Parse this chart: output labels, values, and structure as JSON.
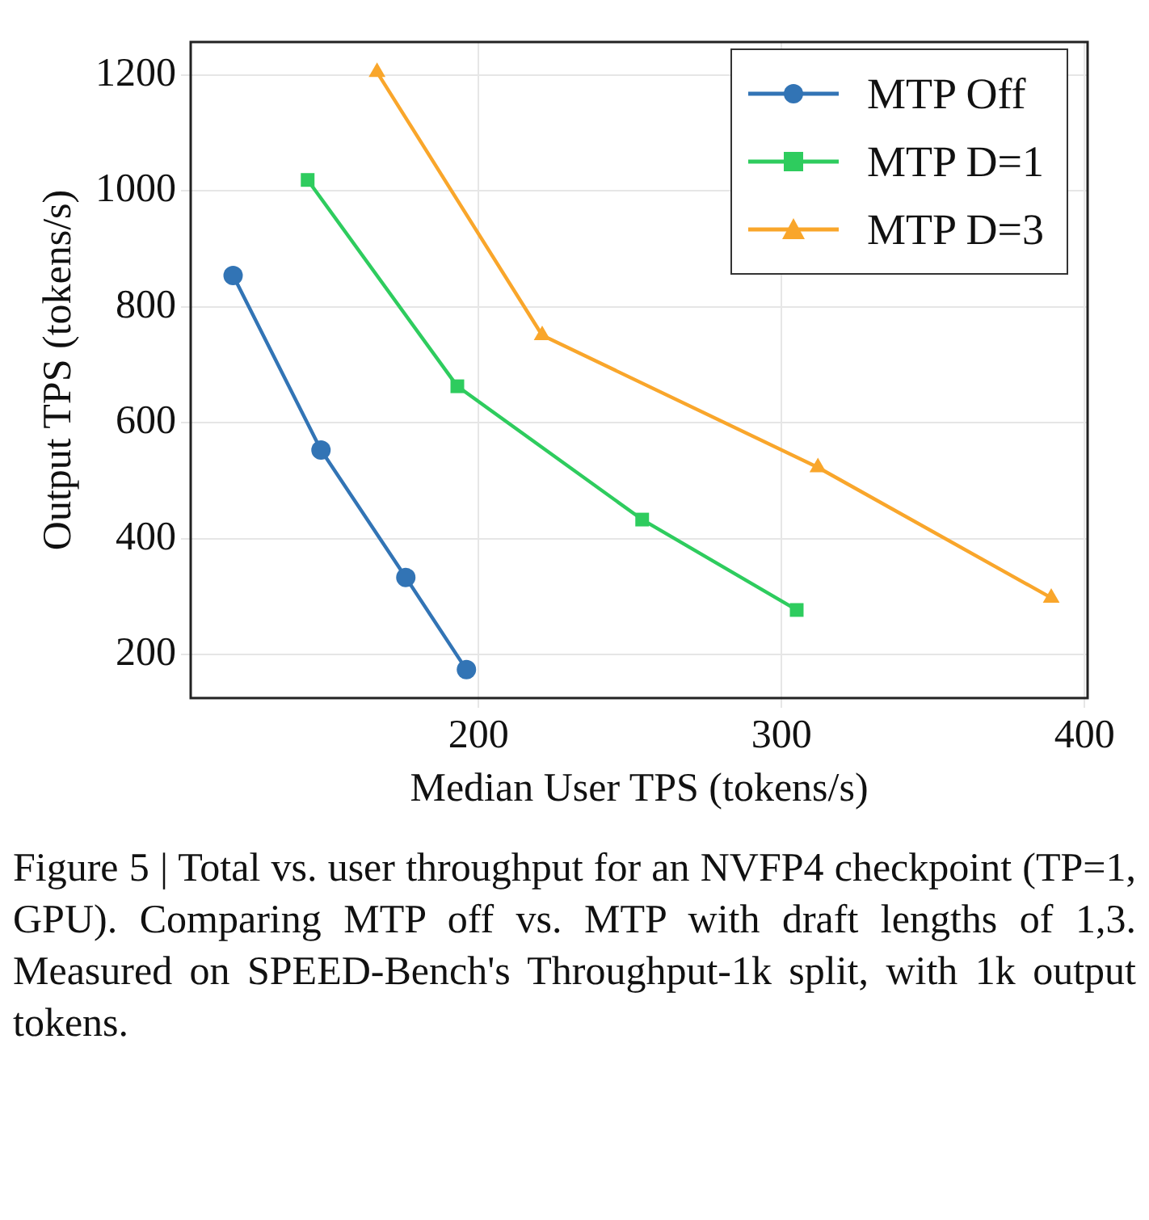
{
  "chart_data": {
    "type": "line",
    "xlabel": "Median User TPS (tokens/s)",
    "ylabel": "Output TPS (tokens/s)",
    "series": [
      {
        "name": "MTP Off",
        "color": "#3274b5",
        "marker": "circle",
        "x": [
          119,
          148,
          176,
          196
        ],
        "values": [
          854,
          553,
          333,
          174
        ]
      },
      {
        "name": "MTP D=1",
        "color": "#2ecc5e",
        "marker": "square",
        "x": [
          143.6,
          193,
          254,
          305
        ],
        "values": [
          1019,
          663,
          433,
          277
        ]
      },
      {
        "name": "MTP D=3",
        "color": "#f9a62b",
        "marker": "triangle",
        "x": [
          166.5,
          221,
          312,
          389
        ],
        "values": [
          1205,
          751,
          523,
          298
        ]
      }
    ],
    "xlim": [
      105,
      401
    ],
    "xticks": [
      200,
      300,
      400
    ],
    "ylim": [
      125,
      1257
    ],
    "yticks": [
      200,
      400,
      600,
      800,
      1000,
      1200
    ],
    "grid": true,
    "legend": "top right",
    "line_style": "solid",
    "annotations": [
      "Figure 5 | Total vs.  user throughput for an NVFP4 checkpoint (TP=1, GPU). Comparing MTP off vs. MTP with draft lengths of 1,3.  Measured on SPEED-Bench's Throughput-1k split, with 1k output tokens."
    ]
  }
}
